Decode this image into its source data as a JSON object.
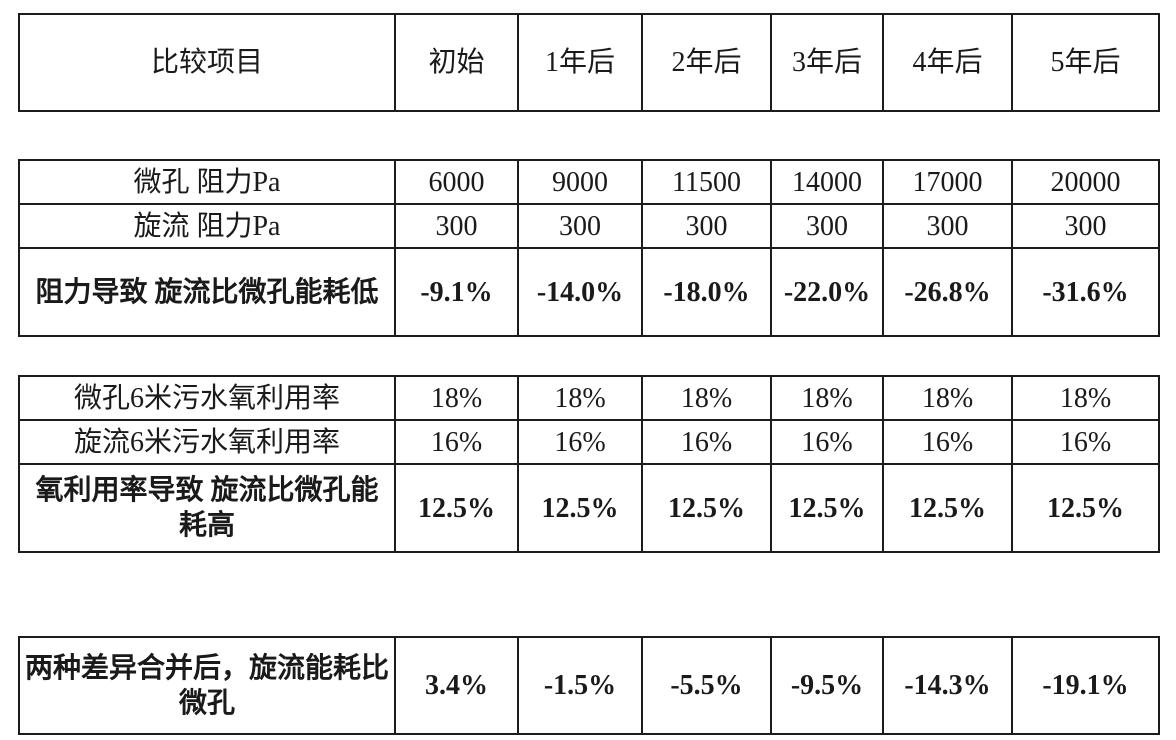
{
  "colors": {
    "emphasis_blue": "#2E5FAE",
    "emphasis_red": "#FE0000",
    "border": "#1C1C1C",
    "text": "#1A1A1A",
    "background": "#FFFFFF"
  },
  "header": {
    "cells": [
      "比较项目",
      "初始",
      "1年后",
      "2年后",
      "3年后",
      "4年后",
      "5年后"
    ]
  },
  "resistance": {
    "rows": [
      {
        "label": "微孔 阻力Pa",
        "values": [
          "6000",
          "9000",
          "11500",
          "14000",
          "17000",
          "20000"
        ]
      },
      {
        "label": "旋流 阻力Pa",
        "values": [
          "300",
          "300",
          "300",
          "300",
          "300",
          "300"
        ]
      },
      {
        "label": "阻力导致 旋流比微孔能耗低",
        "values": [
          "-9.1%",
          "-14.0%",
          "-18.0%",
          "-22.0%",
          "-26.8%",
          "-31.6%"
        ]
      }
    ]
  },
  "oxygen": {
    "rows": [
      {
        "label": "微孔6米污水氧利用率",
        "values": [
          "18%",
          "18%",
          "18%",
          "18%",
          "18%",
          "18%"
        ]
      },
      {
        "label": "旋流6米污水氧利用率",
        "values": [
          "16%",
          "16%",
          "16%",
          "16%",
          "16%",
          "16%"
        ]
      },
      {
        "label": "氧利用率导致 旋流比微孔能耗高",
        "values": [
          "12.5%",
          "12.5%",
          "12.5%",
          "12.5%",
          "12.5%",
          "12.5%"
        ]
      }
    ]
  },
  "combined": {
    "label": "两种差异合并后，旋流能耗比微孔",
    "values": [
      "3.4%",
      "-1.5%",
      "-5.5%",
      "-9.5%",
      "-14.3%",
      "-19.1%"
    ],
    "value_colors": [
      "red",
      "blue",
      "blue",
      "blue",
      "blue",
      "blue"
    ]
  }
}
